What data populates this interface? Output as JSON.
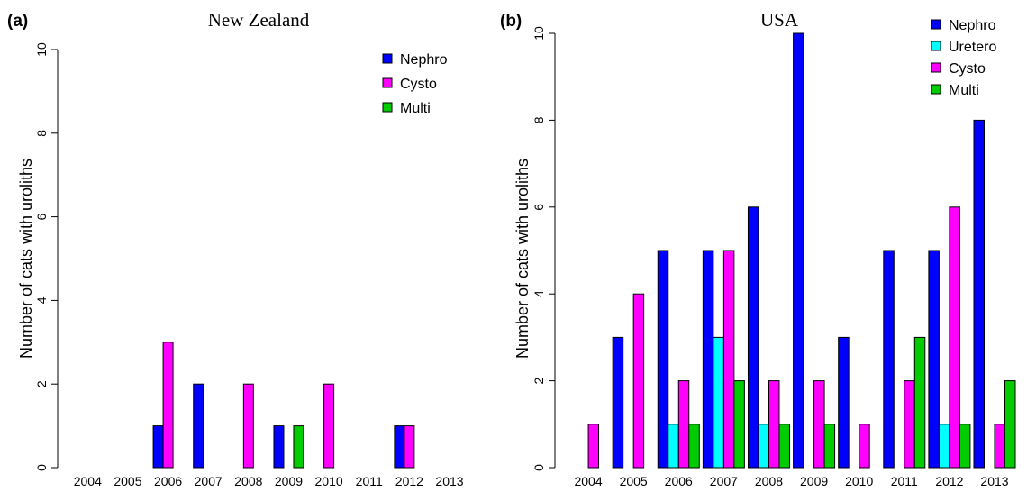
{
  "chart_data": [
    {
      "type": "bar",
      "panel": "(a)",
      "title": "New Zealand",
      "ylabel": "Number of cats with uroliths",
      "xlabel": "",
      "ylim": [
        0,
        10
      ],
      "yticks": [
        0,
        2,
        4,
        6,
        8,
        10
      ],
      "legend_position": "top-right",
      "categories": [
        "2004",
        "2005",
        "2006",
        "2007",
        "2008",
        "2009",
        "2010",
        "2011",
        "2012",
        "2013"
      ],
      "series": [
        {
          "name": "Nephro",
          "color": "#0000ff",
          "values": [
            0,
            0,
            1,
            2,
            0,
            1,
            0,
            0,
            1,
            0
          ]
        },
        {
          "name": "Cysto",
          "color": "#ff00ff",
          "values": [
            0,
            0,
            3,
            0,
            2,
            0,
            2,
            0,
            1,
            0
          ]
        },
        {
          "name": "Multi",
          "color": "#00cc00",
          "values": [
            0,
            0,
            0,
            0,
            0,
            1,
            0,
            0,
            0,
            0
          ]
        }
      ]
    },
    {
      "type": "bar",
      "panel": "(b)",
      "title": "USA",
      "ylabel": "Number of cats with uroliths",
      "xlabel": "",
      "ylim": [
        0,
        10
      ],
      "yticks": [
        0,
        2,
        4,
        6,
        8,
        10
      ],
      "legend_position": "top-right",
      "categories": [
        "2004",
        "2005",
        "2006",
        "2007",
        "2008",
        "2009",
        "2010",
        "2011",
        "2012",
        "2013"
      ],
      "series": [
        {
          "name": "Nephro",
          "color": "#0000ff",
          "values": [
            0,
            3,
            5,
            5,
            6,
            10,
            3,
            5,
            5,
            8
          ]
        },
        {
          "name": "Uretero",
          "color": "#00ffff",
          "values": [
            0,
            0,
            1,
            3,
            1,
            0,
            0,
            0,
            1,
            0
          ]
        },
        {
          "name": "Cysto",
          "color": "#ff00ff",
          "values": [
            1,
            4,
            2,
            5,
            2,
            2,
            1,
            2,
            6,
            1
          ]
        },
        {
          "name": "Multi",
          "color": "#00cc00",
          "values": [
            0,
            0,
            1,
            2,
            1,
            1,
            0,
            3,
            1,
            2
          ]
        }
      ]
    }
  ]
}
